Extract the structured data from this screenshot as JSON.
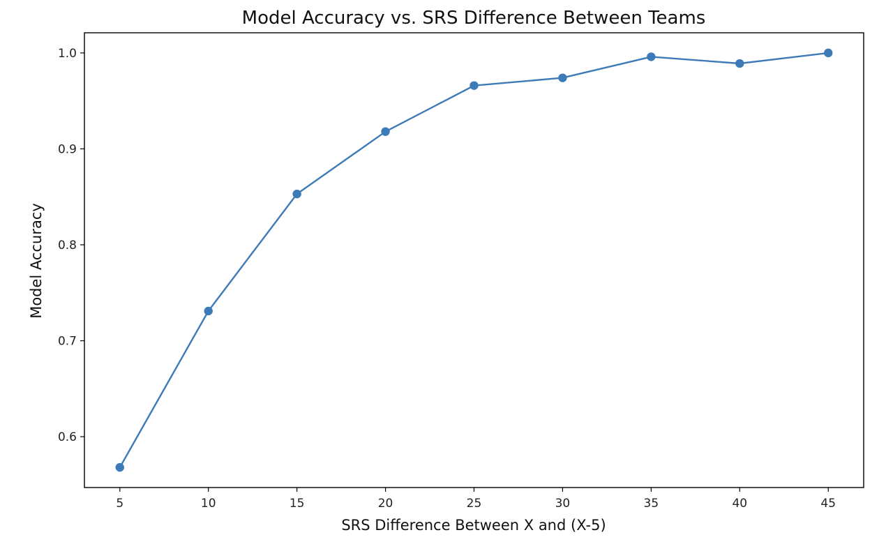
{
  "chart_data": {
    "type": "line",
    "title": "Model Accuracy vs. SRS Difference Between Teams",
    "xlabel": "SRS Difference Between X and (X-5)",
    "ylabel": "Model Accuracy",
    "x": [
      5,
      10,
      15,
      20,
      25,
      30,
      35,
      40,
      45
    ],
    "series": [
      {
        "values": [
          0.568,
          0.731,
          0.853,
          0.918,
          0.966,
          0.974,
          0.996,
          0.989,
          1.0
        ],
        "color": "#3d7ab8",
        "marker": "circle"
      }
    ],
    "xticks": [
      5,
      10,
      15,
      20,
      25,
      30,
      35,
      40,
      45
    ],
    "xtick_labels": [
      "5",
      "10",
      "15",
      "20",
      "25",
      "30",
      "35",
      "40",
      "45"
    ],
    "yticks": [
      0.6,
      0.7,
      0.8,
      0.9,
      1.0
    ],
    "ytick_labels": [
      "0.6",
      "0.7",
      "0.8",
      "0.9",
      "1.0"
    ],
    "xlim": [
      3,
      47
    ],
    "ylim": [
      0.547,
      1.021
    ],
    "grid": false,
    "legend": "none"
  }
}
